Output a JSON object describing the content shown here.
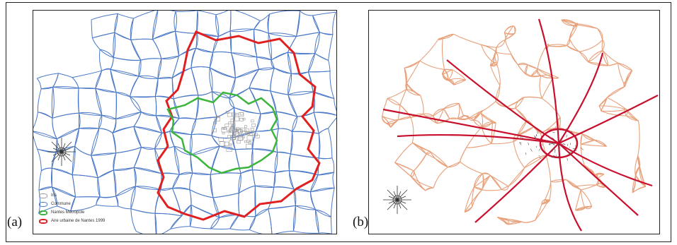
{
  "panels": {
    "a": {
      "label": "(a)"
    },
    "b": {
      "label": "(b)"
    }
  },
  "legend": {
    "items": [
      {
        "label": "Iris",
        "color": "#9a9a9a",
        "width": 1
      },
      {
        "label": "Commune",
        "color": "#4a78c8",
        "width": 1
      },
      {
        "label": "Nantes Métropole",
        "color": "#3cb53c",
        "width": 2
      },
      {
        "label": "Aire urbaine de Nantes 1999",
        "color": "#e02020",
        "width": 2
      }
    ]
  },
  "colors": {
    "commune": "#4a78c8",
    "iris": "#9a9a9a",
    "metropole": "#3cb53c",
    "aire_urbaine": "#e02020",
    "minor_roads": "#e8a07a",
    "major_roads": "#c8102e",
    "urban_core": "#555555"
  },
  "icons": {
    "compass": "compass-rose-icon"
  }
}
